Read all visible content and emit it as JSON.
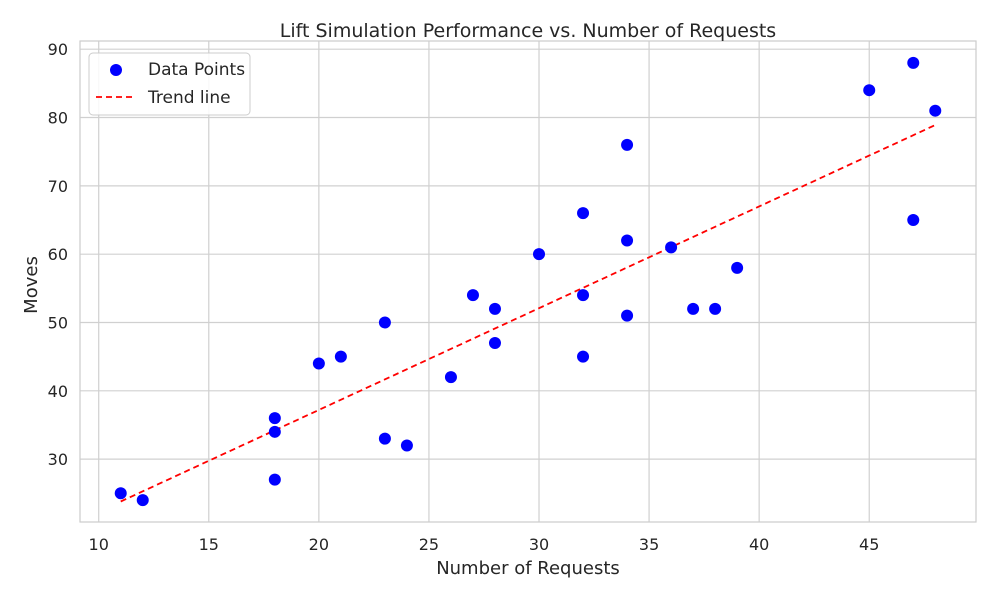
{
  "chart_data": {
    "type": "scatter",
    "title": "Lift Simulation Performance vs. Number of Requests",
    "xlabel": "Number of Requests",
    "ylabel": "Moves",
    "xlim": [
      9.15,
      49.85
    ],
    "ylim": [
      20.8,
      91.2
    ],
    "xticks": [
      10,
      15,
      20,
      25,
      30,
      35,
      40,
      45
    ],
    "yticks": [
      30,
      40,
      50,
      60,
      70,
      80,
      90
    ],
    "grid": true,
    "legend_position": "top-left",
    "series": [
      {
        "name": "Data Points",
        "kind": "scatter",
        "color": "#0000ff",
        "points": [
          [
            11,
            25
          ],
          [
            12,
            24
          ],
          [
            18,
            36
          ],
          [
            18,
            34
          ],
          [
            18,
            27
          ],
          [
            20,
            44
          ],
          [
            21,
            45
          ],
          [
            23,
            50
          ],
          [
            23,
            33
          ],
          [
            24,
            32
          ],
          [
            26,
            42
          ],
          [
            27,
            54
          ],
          [
            28,
            52
          ],
          [
            28,
            47
          ],
          [
            30,
            60
          ],
          [
            32,
            66
          ],
          [
            32,
            54
          ],
          [
            32,
            45
          ],
          [
            34,
            76
          ],
          [
            34,
            62
          ],
          [
            34,
            51
          ],
          [
            36,
            61
          ],
          [
            37,
            52
          ],
          [
            38,
            52
          ],
          [
            39,
            58
          ],
          [
            45,
            84
          ],
          [
            47,
            88
          ],
          [
            47,
            65
          ],
          [
            48,
            81
          ]
        ]
      },
      {
        "name": "Trend line",
        "kind": "line",
        "style": "dashed",
        "color": "#ff0000",
        "x": [
          11,
          48
        ],
        "y": [
          23.8,
          78.9
        ]
      }
    ]
  },
  "colors": {
    "background": "#ffffff",
    "grid": "#d0d0d0",
    "text": "#262626"
  }
}
